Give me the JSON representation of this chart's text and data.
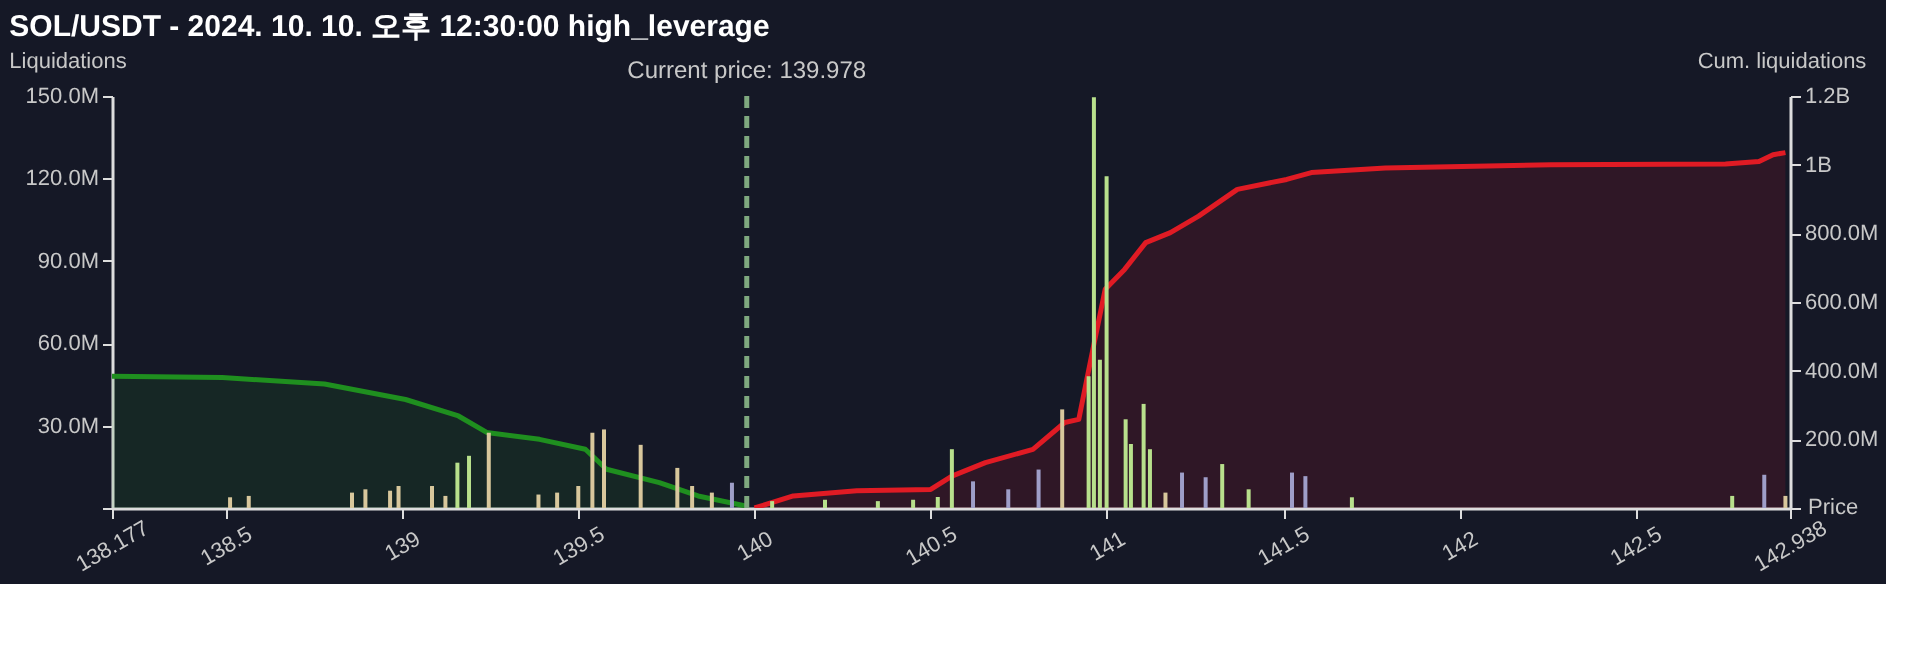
{
  "chart_data": {
    "type": "bar",
    "title": "SOL/USDT - 2024. 10. 10. 오후 12:30:00 high_leverage",
    "xlabel": "Price",
    "ylabel": "Liquidations",
    "y2label": "Cum. liquidations",
    "xlim": [
      138.177,
      142.938
    ],
    "xticks": [
      138.177,
      138.5,
      139,
      139.5,
      140,
      140.5,
      141,
      141.5,
      142,
      142.5,
      142.938
    ],
    "ylim": [
      0,
      150000000
    ],
    "yticks": [
      {
        "value": 0,
        "label": null
      },
      {
        "value": 30000000,
        "label": "30.0M"
      },
      {
        "value": 60000000,
        "label": "60.0M"
      },
      {
        "value": 90000000,
        "label": "90.0M"
      },
      {
        "value": 120000000,
        "label": "120.0M"
      },
      {
        "value": 150000000,
        "label": "150.0M"
      }
    ],
    "y2lim": [
      0,
      1200000000
    ],
    "y2ticks": [
      {
        "value": 0,
        "label": null
      },
      {
        "value": 200000000,
        "label": "200.0M"
      },
      {
        "value": 400000000,
        "label": "400.0M"
      },
      {
        "value": 600000000,
        "label": "600.0M"
      },
      {
        "value": 800000000,
        "label": "800.0M"
      },
      {
        "value": 1000000000,
        "label": "1B"
      },
      {
        "value": 1200000000,
        "label": "1.2B"
      }
    ],
    "grid": false,
    "series": [
      {
        "x": [
          138.512,
          138.565,
          138.858,
          138.896,
          138.966,
          138.99,
          139.085,
          139.123,
          139.157,
          139.19,
          139.246,
          139.387,
          139.44,
          139.5,
          139.54,
          139.573,
          139.677,
          139.781,
          139.823,
          139.879,
          139.936,
          140.05,
          140.2,
          140.35,
          140.45,
          140.52,
          140.56,
          140.62,
          140.72,
          140.806,
          140.873,
          140.948,
          140.963,
          140.98,
          140.999,
          141.053,
          141.068,
          141.104,
          141.122,
          141.166,
          141.213,
          141.28,
          141.327,
          141.402,
          141.525,
          141.563,
          141.695,
          142.774,
          142.865,
          142.925
        ],
        "values": [
          3900000,
          4400000,
          5600000,
          6800000,
          6300000,
          8000000,
          8000000,
          4400000,
          16500000,
          19000000,
          27400000,
          4900000,
          5600000,
          8000000,
          27400000,
          28600000,
          23000000,
          14600000,
          8000000,
          5600000,
          9200000,
          2500000,
          3000000,
          2500000,
          3000000,
          4000000,
          21400000,
          9700000,
          6800000,
          14000000,
          35900000,
          48000000,
          149500000,
          54000000,
          120800000,
          32300000,
          23300000,
          37900000,
          21400000,
          5600000,
          12900000,
          11200000,
          16000000,
          6800000,
          12900000,
          11600000,
          3900000,
          4400000,
          12100000,
          4400000
        ],
        "colors": [
          "#d8c79c",
          "#d8c79c",
          "#d8c79c",
          "#d8c79c",
          "#d8c79c",
          "#d8c79c",
          "#d8c79c",
          "#d8c79c",
          "#b8e08c",
          "#b8e08c",
          "#d8c79c",
          "#d8c79c",
          "#d8c79c",
          "#d8c79c",
          "#d8c79c",
          "#d8c79c",
          "#d8c79c",
          "#d8c79c",
          "#d8c79c",
          "#d8c79c",
          "#9e9ec8",
          "#b8e08c",
          "#b8e08c",
          "#b8e08c",
          "#b8e08c",
          "#b8e08c",
          "#b8e08c",
          "#9e9ec8",
          "#9e9ec8",
          "#9e9ec8",
          "#d8c79c",
          "#b8e08c",
          "#b8e08c",
          "#b8e08c",
          "#b8e08c",
          "#b8e08c",
          "#b8e08c",
          "#b8e08c",
          "#b8e08c",
          "#d8c79c",
          "#9e9ec8",
          "#9e9ec8",
          "#b8e08c",
          "#b8e08c",
          "#9e9ec8",
          "#9e9ec8",
          "#b8e08c",
          "#b8e08c",
          "#9e9ec8",
          "#d8c79c"
        ]
      },
      {
        "type": "area",
        "axis": "y2",
        "color": "#1f8f1f",
        "x": [
          138.177,
          138.49,
          138.78,
          139.01,
          139.16,
          139.24,
          139.39,
          139.52,
          139.58,
          139.73,
          139.84,
          139.975
        ],
        "values": [
          384000000,
          380000000,
          361000000,
          316000000,
          268000000,
          220000000,
          200000000,
          171000000,
          113000000,
          74000000,
          35000000,
          6000000
        ]
      },
      {
        "type": "area",
        "axis": "y2",
        "color": "#e01b24",
        "x": [
          140.0,
          140.11,
          140.29,
          140.5,
          140.56,
          140.655,
          140.79,
          140.88,
          140.92,
          140.96,
          140.995,
          141.05,
          141.11,
          141.18,
          141.26,
          141.37,
          141.51,
          141.58,
          141.79,
          142.26,
          142.755,
          142.85,
          142.89,
          142.925
        ],
        "values": [
          0,
          35000000,
          50000000,
          54000000,
          93000000,
          132000000,
          171000000,
          249000000,
          258000000,
          462000000,
          637000000,
          695000000,
          773000000,
          802000000,
          850000000,
          928000000,
          957000000,
          977000000,
          990000000,
          1000000000,
          1002000000,
          1009000000,
          1029000000,
          1035000000
        ]
      }
    ],
    "ref_lines": [
      {
        "axis": "x",
        "value": 139.978,
        "label": "Current price: 139.978",
        "color": "#7fa87f",
        "line_style": "dashed"
      }
    ]
  }
}
